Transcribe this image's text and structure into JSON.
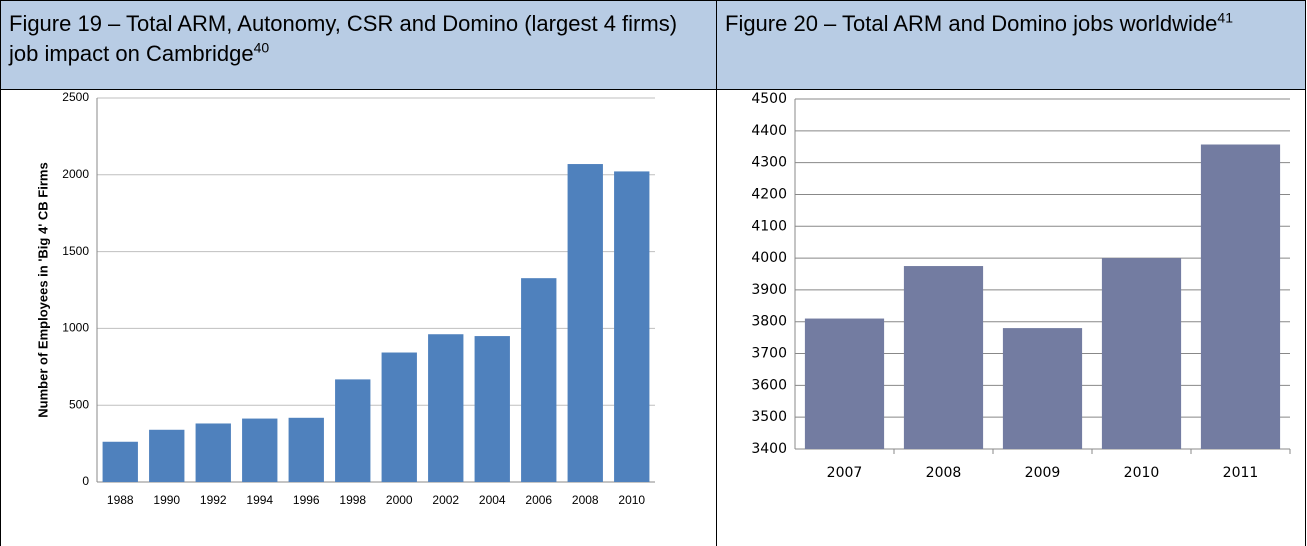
{
  "figures": [
    {
      "caption": "Figure 19 – Total ARM, Autonomy, CSR and Domino (largest 4 firms) job impact on Cambridge",
      "footnote": "40"
    },
    {
      "caption": "Figure 20 – Total ARM and Domino jobs worldwide",
      "footnote": "41"
    }
  ],
  "chart_data": [
    {
      "type": "bar",
      "ylabel": "Number of Employees in 'Big 4' CB Firms",
      "categories": [
        "1988",
        "1990",
        "1992",
        "1994",
        "1996",
        "1998",
        "2000",
        "2002",
        "2004",
        "2006",
        "2008",
        "2010"
      ],
      "values": [
        262,
        340,
        381,
        413,
        418,
        668,
        843,
        962,
        950,
        1327,
        2070,
        2022
      ],
      "color": "#4f81bd",
      "ylim": [
        0,
        2500
      ],
      "yticks": [
        0,
        500,
        1000,
        1500,
        2000,
        2500
      ],
      "grid": true
    },
    {
      "type": "bar",
      "categories": [
        "2007",
        "2008",
        "2009",
        "2010",
        "2011"
      ],
      "values": [
        3810,
        3975,
        3780,
        4000,
        4357
      ],
      "color": "#737ca1",
      "ylim": [
        3400,
        4500
      ],
      "yticks": [
        3400,
        3500,
        3600,
        3700,
        3800,
        3900,
        4000,
        4100,
        4200,
        4300,
        4400,
        4500
      ],
      "grid": true
    }
  ]
}
